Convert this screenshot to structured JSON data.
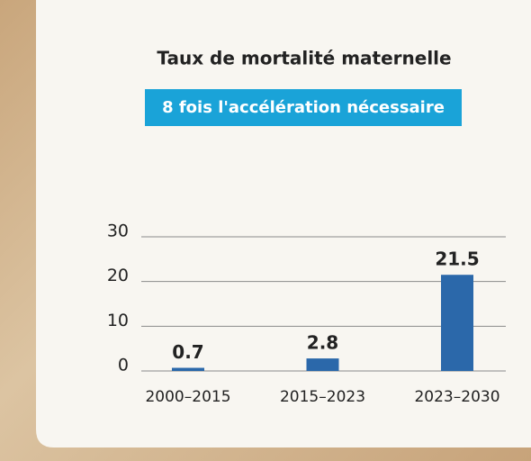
{
  "chart_data": {
    "type": "bar",
    "title": "Taux de mortalité maternelle",
    "subtitle": "8 fois l'accélération nécessaire",
    "categories": [
      "2000–2015",
      "2015–2023",
      "2023–2030"
    ],
    "values": [
      0.7,
      2.8,
      21.5
    ],
    "color": "#2b68aa",
    "ylim": [
      0,
      30
    ],
    "yticks": [
      0,
      10,
      20,
      30
    ],
    "grid": true
  }
}
